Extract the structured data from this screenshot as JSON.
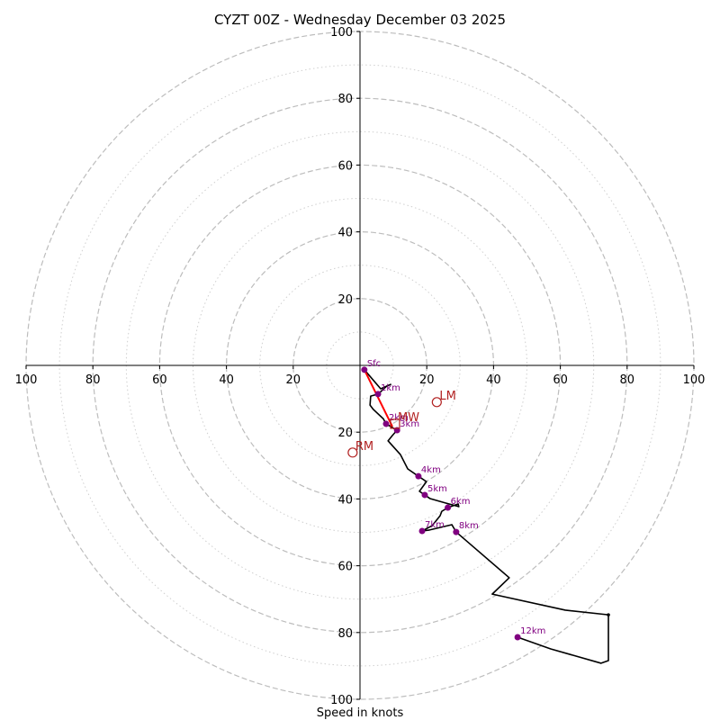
{
  "chart_data": {
    "type": "line",
    "subtype": "hodograph",
    "title": "CYZT 00Z - Wednesday December 03 2025",
    "xlabel": "Speed in knots",
    "ylabel": "",
    "range_knots": 100,
    "ring_major": [
      20,
      40,
      60,
      80,
      100
    ],
    "ring_minor": [
      10,
      30,
      50,
      70,
      90
    ],
    "grid": true,
    "x_tick_labels": [
      "100",
      "80",
      "60",
      "40",
      "20",
      "20",
      "40",
      "60",
      "80",
      "100"
    ],
    "x_ticks": [
      -100,
      -80,
      -60,
      -40,
      -20,
      20,
      40,
      60,
      80,
      100
    ],
    "y_tick_labels": [
      "100",
      "80",
      "60",
      "40",
      "20",
      "20",
      "40",
      "60",
      "80",
      "100"
    ],
    "y_ticks": [
      100,
      80,
      60,
      40,
      20,
      -20,
      -40,
      -60,
      -80,
      -100
    ],
    "hodograph_line": {
      "color": "#000000",
      "points": [
        [
          1.3,
          -1.3
        ],
        [
          6.2,
          -7.0
        ],
        [
          9.2,
          -5.7
        ],
        [
          8.0,
          -6.2
        ],
        [
          5.4,
          -8.6
        ],
        [
          3.2,
          -9.2
        ],
        [
          3.0,
          -11.9
        ],
        [
          4.0,
          -13.2
        ],
        [
          7.0,
          -16.0
        ],
        [
          7.8,
          -17.5
        ],
        [
          10.0,
          -18.8
        ],
        [
          11.1,
          -19.4
        ],
        [
          9.7,
          -21.0
        ],
        [
          8.4,
          -22.6
        ],
        [
          12.1,
          -26.7
        ],
        [
          14.3,
          -31.0
        ],
        [
          17.5,
          -33.2
        ],
        [
          19.9,
          -34.8
        ],
        [
          17.8,
          -37.7
        ],
        [
          19.4,
          -38.8
        ],
        [
          21.0,
          -39.9
        ],
        [
          25.6,
          -41.2
        ],
        [
          29.6,
          -42.3
        ],
        [
          29.4,
          -41.5
        ],
        [
          26.3,
          -42.6
        ],
        [
          24.5,
          -43.7
        ],
        [
          24.0,
          -45.0
        ],
        [
          21.6,
          -48.0
        ],
        [
          18.6,
          -49.6
        ],
        [
          20.8,
          -49.3
        ],
        [
          27.5,
          -47.7
        ],
        [
          28.8,
          -49.9
        ],
        [
          44.7,
          -63.6
        ],
        [
          39.6,
          -68.5
        ],
        [
          61.5,
          -73.3
        ],
        [
          74.4,
          -74.7
        ],
        [
          74.4,
          -88.4
        ],
        [
          72.2,
          -89.2
        ],
        [
          57.1,
          -84.9
        ],
        [
          47.2,
          -81.4
        ]
      ]
    },
    "height_markers": [
      {
        "label": "Sfc",
        "u": 1.3,
        "v": -1.3
      },
      {
        "label": "1km",
        "u": 5.4,
        "v": -8.6
      },
      {
        "label": "2km",
        "u": 7.8,
        "v": -17.5
      },
      {
        "label": "3km",
        "u": 11.1,
        "v": -19.4
      },
      {
        "label": "4km",
        "u": 17.5,
        "v": -33.2
      },
      {
        "label": "5km",
        "u": 19.4,
        "v": -38.8
      },
      {
        "label": "6km",
        "u": 26.3,
        "v": -42.6
      },
      {
        "label": "7km",
        "u": 18.6,
        "v": -49.6
      },
      {
        "label": "8km",
        "u": 28.8,
        "v": -49.9
      },
      {
        "label": "12km",
        "u": 47.2,
        "v": -81.4
      }
    ],
    "marker_color": "#800080",
    "shear_vector": {
      "color": "#ff0000",
      "from": [
        1.3,
        -1.3
      ],
      "to": [
        9.7,
        -18.3
      ]
    },
    "storm_motions": [
      {
        "label": "LM",
        "u": 23.0,
        "v": -11.0,
        "shape": "circle"
      },
      {
        "label": "RM",
        "u": -2.2,
        "v": -26.1,
        "shape": "circle"
      },
      {
        "label": "MW",
        "u": 10.5,
        "v": -17.5,
        "shape": "square"
      }
    ],
    "storm_motion_color": "#b22222"
  }
}
